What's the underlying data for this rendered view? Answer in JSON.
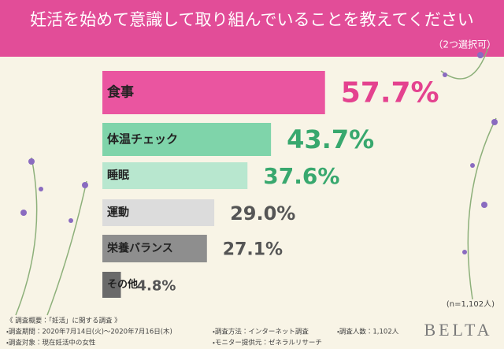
{
  "chart_data": {
    "type": "bar",
    "orientation": "horizontal",
    "title": "妊活を始めて意識して取り組んでいることを教えてください",
    "subtitle": "（2つ選択可）",
    "categories": [
      "食事",
      "体温チェック",
      "睡眠",
      "運動",
      "栄養バランス",
      "その他"
    ],
    "values": [
      57.7,
      43.7,
      37.6,
      29.0,
      27.1,
      4.8
    ],
    "value_labels": [
      "57.7%",
      "43.7%",
      "37.6%",
      "29.0%",
      "27.1%",
      "4.8%"
    ],
    "colors": [
      "#ea55a0",
      "#7fd4aa",
      "#b8e7cf",
      "#dcdcdc",
      "#8e8e8e",
      "#6a6a6a"
    ],
    "label_colors": [
      "#e4428f",
      "#38a86e",
      "#38a86e",
      "#555555",
      "#555555",
      "#555555"
    ],
    "note": "(n=1,102人)",
    "survey": {
      "heading": "《 調査概要：「妊活」に関する調査 》",
      "items": [
        "・調査期間：2020年7月14日(火)～2020年7月16日(木)",
        "・調査対象：現在妊活中の女性",
        "・調査方法：インターネット調査",
        "・モニター提供元：ゼネラルリサーチ",
        "・調査人数：1,102人"
      ]
    },
    "brand": "BELTA"
  }
}
